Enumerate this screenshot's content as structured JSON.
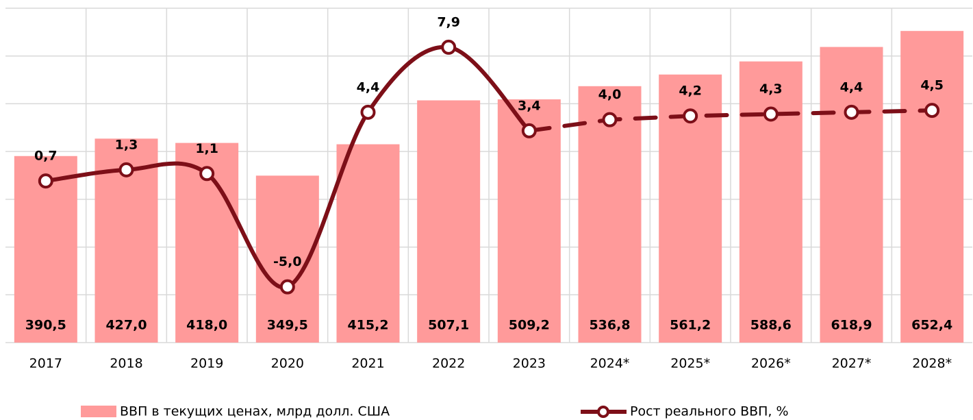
{
  "chart_data": {
    "type": "bar_line",
    "categories": [
      "2017",
      "2018",
      "2019",
      "2020",
      "2021",
      "2022",
      "2023",
      "2024*",
      "2025*",
      "2026*",
      "2027*",
      "2028*"
    ],
    "series": [
      {
        "name": "ВВП в текущих ценах, млрд долл. США",
        "type": "bar",
        "color": "#ff9a9a",
        "values": [
          390.5,
          427.0,
          418.0,
          349.5,
          415.2,
          507.1,
          509.2,
          536.8,
          561.2,
          588.6,
          618.9,
          652.4
        ],
        "value_labels": [
          "390,5",
          "427,0",
          "418,0",
          "349,5",
          "415,2",
          "507,1",
          "509,2",
          "536,8",
          "561,2",
          "588,6",
          "618,9",
          "652,4"
        ]
      },
      {
        "name": "Рост реального ВВП, %",
        "type": "line",
        "axis": "y2",
        "color": "#7d0f18",
        "values": [
          0.7,
          1.3,
          1.1,
          -5.0,
          4.4,
          7.9,
          3.4,
          4.0,
          4.2,
          4.3,
          4.4,
          4.5
        ],
        "value_labels": [
          "0,7",
          "1,3",
          "1,1",
          "-5,0",
          "4,4",
          "7,9",
          "3,4",
          "4,0",
          "4,2",
          "4,3",
          "4,4",
          "4,5"
        ]
      }
    ],
    "ylim": [
      0,
      700
    ],
    "yticks": [
      0,
      100,
      200,
      300,
      400,
      500,
      600,
      700
    ],
    "y2lim": [
      -8,
      10
    ],
    "grid": true
  }
}
